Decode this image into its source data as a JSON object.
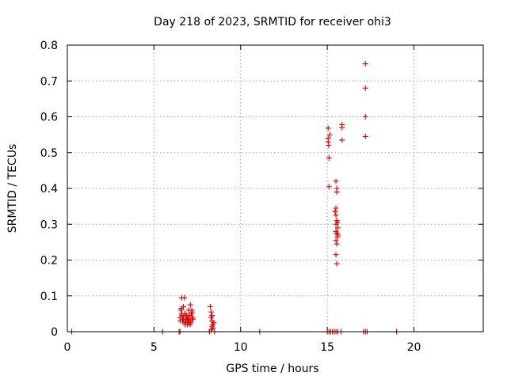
{
  "chart_data": {
    "type": "scatter",
    "title": "Day 218 of 2023, SRMTID for receiver ohi3",
    "xlabel": "GPS time / hours",
    "ylabel": "SRMTID / TECUs",
    "xlim": [
      0,
      24
    ],
    "ylim": [
      0,
      0.8
    ],
    "xticks": [
      0,
      5,
      10,
      15,
      20
    ],
    "xtick_labels": [
      "0",
      "5",
      "10",
      "15",
      "20"
    ],
    "yticks": [
      0,
      0.1,
      0.2,
      0.3,
      0.4,
      0.5,
      0.6,
      0.7,
      0.8
    ],
    "ytick_labels": [
      "0",
      "0.1",
      "0.2",
      "0.3",
      "0.4",
      "0.5",
      "0.6",
      "0.7",
      "0.8"
    ],
    "grid": true,
    "marker": "+",
    "color": "#e00000",
    "series": [
      {
        "name": "SRMTID",
        "x": [
          0.25,
          5.5,
          6.45,
          6.5,
          8.2,
          8.5,
          11.1,
          15.0,
          15.1,
          15.2,
          15.3,
          15.4,
          15.5,
          15.6,
          15.8,
          17.1,
          17.2,
          17.3,
          19.0,
          6.5,
          6.55,
          6.6,
          6.6,
          6.65,
          6.7,
          6.7,
          6.75,
          6.8,
          6.8,
          6.85,
          6.9,
          6.95,
          7.0,
          7.0,
          7.05,
          7.1,
          7.1,
          7.15,
          7.2,
          7.2,
          7.25,
          6.52,
          6.62,
          6.72,
          6.82,
          6.92,
          7.02,
          7.12,
          7.22,
          6.58,
          6.68,
          6.78,
          6.88,
          6.98,
          7.08,
          7.18,
          8.25,
          8.3,
          8.3,
          8.35,
          8.35,
          8.4,
          8.4,
          8.45,
          8.3,
          8.35,
          15.05,
          15.05,
          15.05,
          15.08,
          15.1,
          15.1,
          15.15,
          15.5,
          15.55,
          15.55,
          15.5,
          15.45,
          15.5,
          15.55,
          15.6,
          15.6,
          15.5,
          15.55,
          15.6,
          15.5,
          15.55,
          15.6,
          15.5,
          15.55,
          15.5,
          15.85,
          15.85,
          15.85,
          17.2,
          17.2,
          17.2,
          17.2
        ],
        "y": [
          0,
          0,
          0,
          0,
          0,
          0,
          0,
          0,
          0,
          0,
          0,
          0,
          0,
          0,
          0,
          0,
          0,
          0,
          0,
          0.04,
          0.06,
          0.095,
          0.05,
          0.03,
          0.07,
          0.04,
          0.095,
          0.02,
          0.05,
          0.03,
          0.04,
          0.035,
          0.025,
          0.06,
          0.045,
          0.075,
          0.03,
          0.05,
          0.04,
          0.055,
          0.035,
          0.03,
          0.045,
          0.03,
          0.025,
          0.02,
          0.03,
          0.025,
          0.04,
          0.065,
          0.035,
          0.05,
          0.045,
          0.03,
          0.02,
          0.06,
          0.07,
          0.055,
          0.04,
          0.03,
          0.045,
          0.02,
          0.01,
          0.025,
          0.005,
          0.015,
          0.568,
          0.54,
          0.53,
          0.52,
          0.485,
          0.405,
          0.55,
          0.42,
          0.4,
          0.39,
          0.345,
          0.335,
          0.325,
          0.31,
          0.305,
          0.29,
          0.28,
          0.275,
          0.265,
          0.255,
          0.245,
          0.27,
          0.215,
          0.19,
          0.3,
          0.578,
          0.57,
          0.535,
          0.748,
          0.68,
          0.6,
          0.545
        ]
      }
    ]
  }
}
